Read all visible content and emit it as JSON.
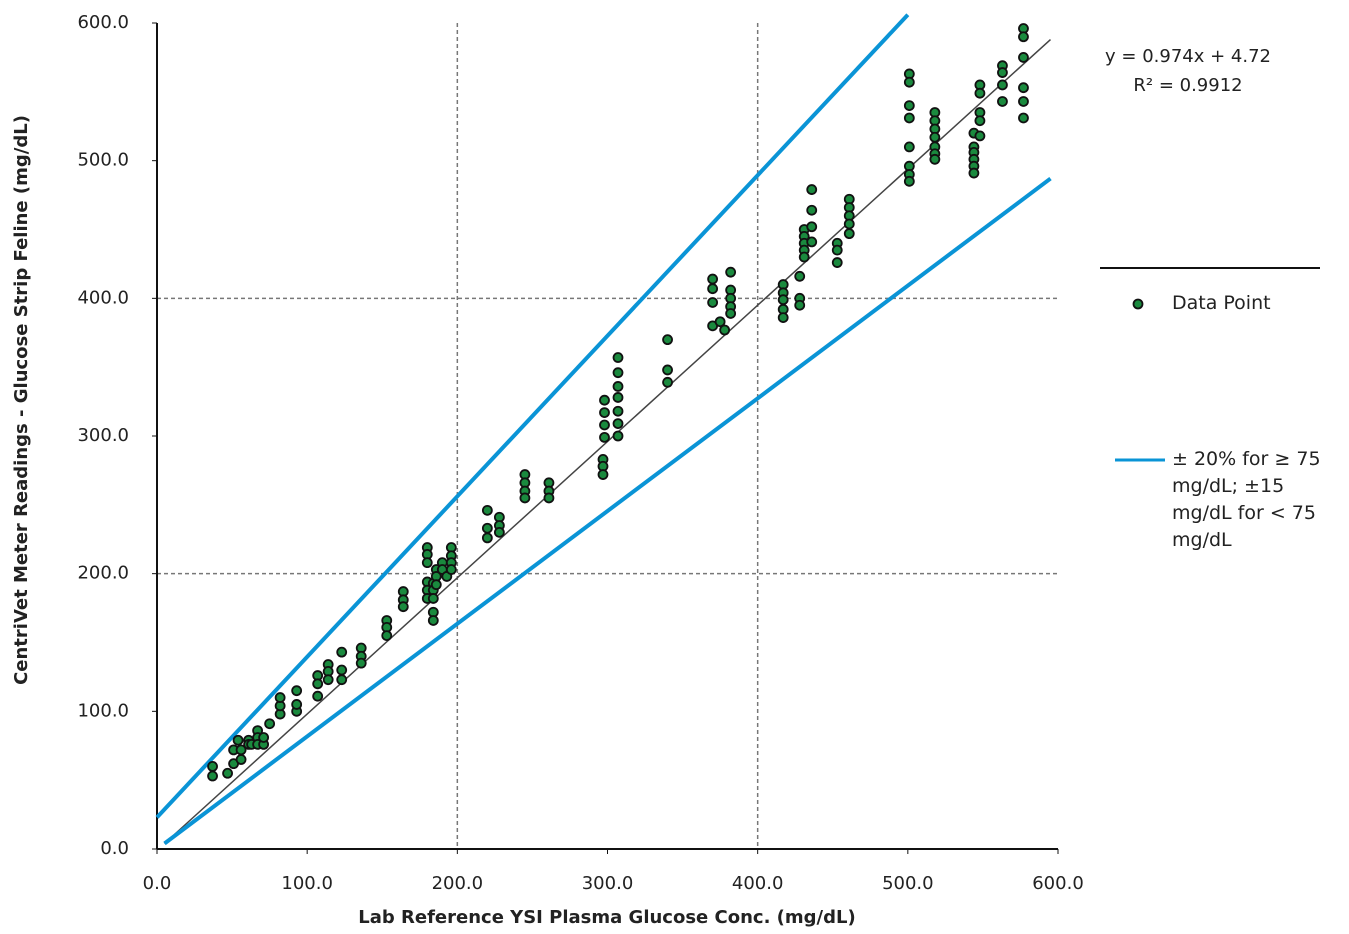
{
  "chart_data": {
    "type": "scatter",
    "x_label": "Lab Reference YSI Plasma Glucose Conc. (mg/dL)",
    "y_label": "CentriVet Meter Readings - Glucose Strip Feline (mg/dL)",
    "annotations": [
      "y = 0.974x + 4.72",
      "R² = 0.9912"
    ],
    "xlim": [
      0,
      600
    ],
    "ylim": [
      0,
      600
    ],
    "xticks": [
      {
        "value": 0,
        "label": "0.0"
      },
      {
        "value": 100,
        "label": "100.0"
      },
      {
        "value": 200,
        "label": "200.0"
      },
      {
        "value": 300,
        "label": "300.0"
      },
      {
        "value": 400,
        "label": "400.0"
      },
      {
        "value": 500,
        "label": "500.0"
      },
      {
        "value": 600,
        "label": "600.0"
      }
    ],
    "yticks": [
      {
        "value": 0,
        "label": "0.0"
      },
      {
        "value": 100,
        "label": "100.0"
      },
      {
        "value": 200,
        "label": "200.0"
      },
      {
        "value": 300,
        "label": "300.0"
      },
      {
        "value": 400,
        "label": "400.0"
      },
      {
        "value": 500,
        "label": "500.0"
      },
      {
        "value": 600,
        "label": "600.0"
      }
    ],
    "xgrid": [
      200,
      400
    ],
    "ygrid": [
      200,
      400
    ],
    "series": [
      {
        "name": "Data Point",
        "type": "scatter",
        "color": "#1a8a3e",
        "x": [
          37,
          37,
          47,
          51,
          51,
          54,
          56,
          56,
          61,
          61,
          63,
          67,
          67,
          67,
          71,
          71,
          75,
          82,
          82,
          82,
          93,
          93,
          93,
          107,
          107,
          107,
          114,
          114,
          114,
          123,
          123,
          123,
          136,
          136,
          136,
          153,
          153,
          153,
          164,
          164,
          164,
          180,
          180,
          180,
          180,
          180,
          180,
          184,
          184,
          184,
          184,
          184,
          186,
          186,
          186,
          190,
          190,
          193,
          196,
          196,
          196,
          196,
          220,
          220,
          220,
          228,
          228,
          228,
          245,
          245,
          245,
          245,
          261,
          261,
          261,
          297,
          297,
          297,
          298,
          298,
          298,
          298,
          307,
          307,
          307,
          307,
          307,
          307,
          307,
          340,
          340,
          340,
          370,
          370,
          370,
          370,
          375,
          378,
          382,
          382,
          382,
          382,
          382,
          417,
          417,
          417,
          417,
          417,
          428,
          428,
          428,
          431,
          431,
          431,
          431,
          431,
          436,
          436,
          436,
          436,
          453,
          453,
          453,
          461,
          461,
          461,
          461,
          461,
          501,
          501,
          501,
          501,
          501,
          501,
          501,
          501,
          518,
          518,
          518,
          518,
          518,
          518,
          518,
          544,
          544,
          544,
          544,
          544,
          544,
          548,
          548,
          548,
          548,
          548,
          563,
          563,
          563,
          563,
          577,
          577,
          577,
          577,
          577,
          577
        ],
        "values": [
          53,
          60,
          55,
          62,
          72,
          79,
          65,
          72,
          79,
          76,
          76,
          86,
          81,
          76,
          76,
          81,
          91,
          98,
          104,
          110,
          100,
          105,
          115,
          126,
          120,
          111,
          134,
          129,
          123,
          143,
          130,
          123,
          146,
          140,
          135,
          166,
          161,
          155,
          187,
          181,
          176,
          219,
          214,
          208,
          194,
          188,
          182,
          193,
          188,
          182,
          172,
          166,
          203,
          198,
          192,
          208,
          203,
          198,
          219,
          213,
          208,
          203,
          246,
          233,
          226,
          241,
          235,
          230,
          272,
          266,
          260,
          255,
          266,
          260,
          255,
          283,
          278,
          272,
          326,
          317,
          308,
          299,
          357,
          346,
          336,
          328,
          318,
          309,
          300,
          370,
          348,
          339,
          414,
          407,
          397,
          380,
          383,
          377,
          419,
          406,
          400,
          394,
          389,
          410,
          404,
          399,
          392,
          386,
          416,
          400,
          395,
          450,
          445,
          440,
          435,
          430,
          479,
          464,
          452,
          441,
          440,
          435,
          426,
          472,
          466,
          460,
          454,
          447,
          563,
          557,
          540,
          531,
          510,
          496,
          490,
          485,
          535,
          529,
          523,
          517,
          510,
          505,
          501,
          520,
          510,
          506,
          501,
          496,
          491,
          555,
          549,
          535,
          529,
          518,
          569,
          564,
          555,
          543,
          596,
          590,
          575,
          553,
          543,
          531
        ]
      },
      {
        "type": "line",
        "color": "#444444",
        "width": 1.5,
        "x": [
          5,
          595
        ],
        "values": [
          4,
          588
        ]
      },
      {
        "name": "± 20% for ≥ 75 mg/dL; ±15 mg/dL for < 75 mg/dL",
        "type": "line",
        "color": "#0a94d6",
        "width": 4,
        "x": [
          0,
          500
        ],
        "values": [
          23,
          606
        ]
      },
      {
        "type": "line",
        "color": "#0a94d6",
        "width": 4,
        "x": [
          5,
          595
        ],
        "values": [
          4,
          487
        ]
      }
    ]
  }
}
